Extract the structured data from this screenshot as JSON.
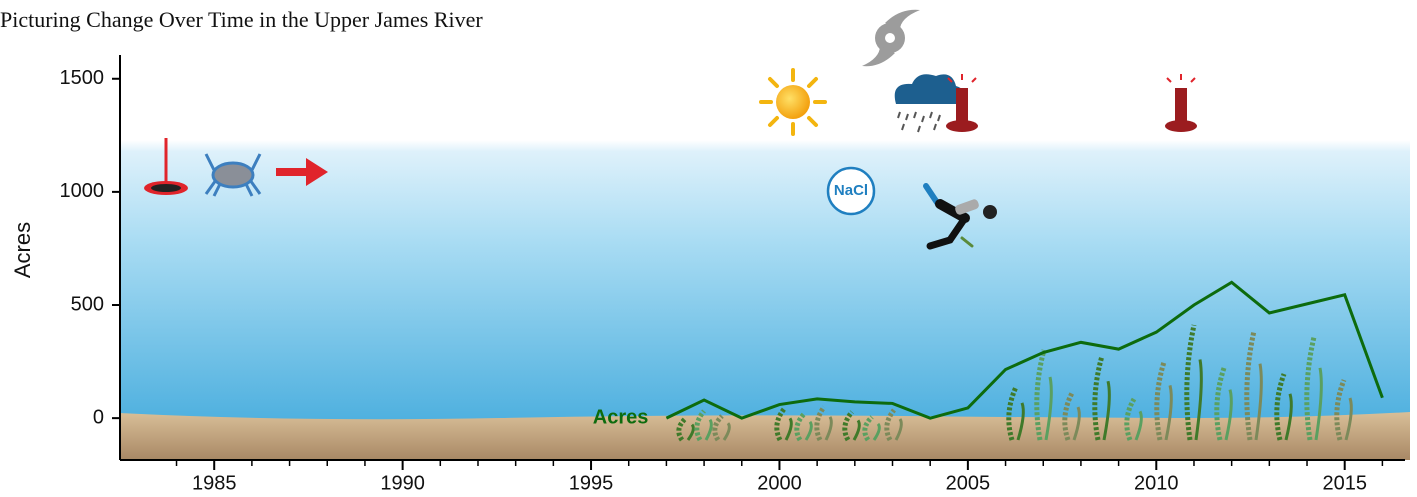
{
  "chart_data": {
    "type": "line",
    "title": "Picturing Change Over Time in the Upper James River",
    "y_label": "Acres",
    "annotations": [
      "NaCl"
    ],
    "x": [
      1997,
      1998,
      1999,
      2000,
      2001,
      2002,
      2003,
      2004,
      2005,
      2006,
      2007,
      2008,
      2009,
      2010,
      2011,
      2012,
      2013,
      2014,
      2015,
      2016
    ],
    "series": [
      {
        "name": "Acres",
        "color": "#0d6b0d",
        "values": [
          0,
          80,
          0,
          60,
          85,
          72,
          65,
          0,
          45,
          215,
          290,
          335,
          305,
          380,
          500,
          600,
          465,
          505,
          545,
          90
        ]
      }
    ],
    "xlim": [
      1982.5,
      2016.6
    ],
    "ylim": [
      -185,
      1605
    ],
    "xticks": [
      1985,
      1990,
      1995,
      2000,
      2005,
      2010,
      2015
    ],
    "xticks_minor": [
      1984,
      1986,
      1987,
      1988,
      1989,
      1991,
      1992,
      1993,
      1994,
      1996,
      1997,
      1998,
      1999,
      2001,
      2002,
      2003,
      2004,
      2006,
      2007,
      2008,
      2009,
      2011,
      2012,
      2013,
      2014,
      2016
    ],
    "yticks": [
      0,
      500,
      1000,
      1500
    ]
  }
}
